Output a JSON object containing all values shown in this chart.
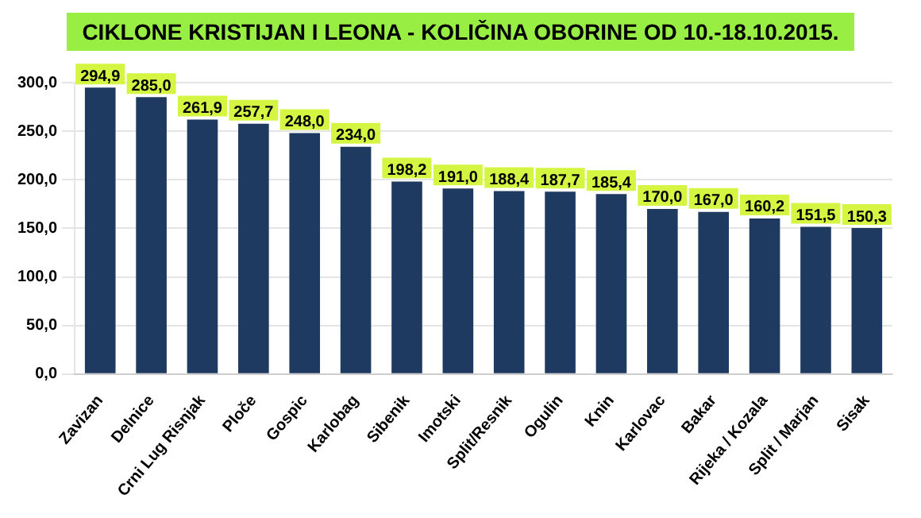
{
  "chart_data": {
    "type": "bar",
    "title": "CIKLONE KRISTIJAN I LEONA   - KOLIČINA OBORINE OD 10.-18.10.2015.",
    "categories": [
      "Zavizan",
      "Delnice",
      "Crni Lug Risnjak",
      "Ploče",
      "Gospic",
      "Karlobag",
      "Sibenik",
      "Imotski",
      "Split/Resnik",
      "Ogulin",
      "Knin",
      "Karlovac",
      "Bakar",
      "Rijeka / Kozala",
      "Split / Marjan",
      "Sisak"
    ],
    "values": [
      294.9,
      285.0,
      261.9,
      257.7,
      248.0,
      234.0,
      198.2,
      191.0,
      188.4,
      187.7,
      185.4,
      170.0,
      167.0,
      160.2,
      151.5,
      150.3
    ],
    "value_labels": [
      "294,9",
      "285,0",
      "261,9",
      "257,7",
      "248,0",
      "234,0",
      "198,2",
      "191,0",
      "188,4",
      "187,7",
      "185,4",
      "170,0",
      "167,0",
      "160,2",
      "151,5",
      "150,3"
    ],
    "color": "#1f3a60",
    "ylim": [
      0,
      300
    ],
    "yticks": [
      {
        "value": 0,
        "label": "0,0"
      },
      {
        "value": 50,
        "label": "50,0"
      },
      {
        "value": 100,
        "label": "100,0"
      },
      {
        "value": 150,
        "label": "150,0"
      },
      {
        "value": 200,
        "label": "200,0"
      },
      {
        "value": 250,
        "label": "250,0"
      },
      {
        "value": 300,
        "label": "300,0"
      }
    ],
    "grid": "y"
  }
}
